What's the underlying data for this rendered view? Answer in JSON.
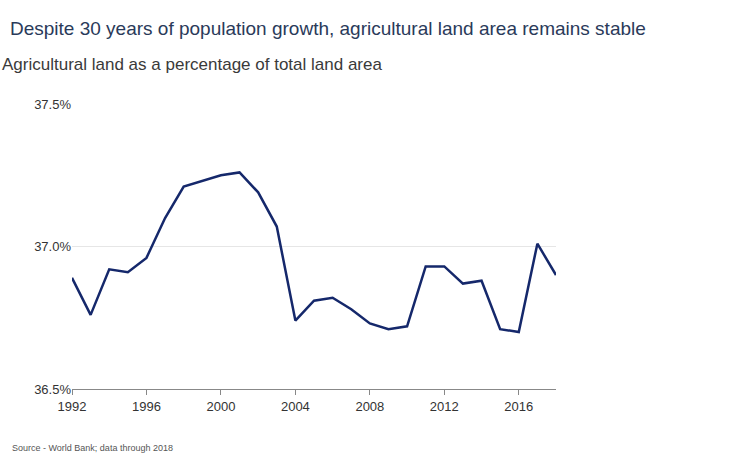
{
  "chart_data": {
    "type": "line",
    "title": "Despite 30 years of population growth, agricultural land area remains stable",
    "subtitle": "Agricultural land as a percentage of total land area",
    "source": "Source - World Bank; data through 2018",
    "x": [
      1992,
      1993,
      1994,
      1995,
      1996,
      1997,
      1998,
      1999,
      2000,
      2001,
      2002,
      2003,
      2004,
      2005,
      2006,
      2007,
      2008,
      2009,
      2010,
      2011,
      2012,
      2013,
      2014,
      2015,
      2016,
      2017,
      2018
    ],
    "values": [
      36.89,
      36.76,
      36.92,
      36.91,
      36.96,
      37.1,
      37.21,
      37.23,
      37.25,
      37.26,
      37.19,
      37.07,
      36.74,
      36.81,
      36.82,
      36.78,
      36.73,
      36.71,
      36.72,
      36.93,
      36.93,
      36.87,
      36.88,
      36.71,
      36.7,
      37.01,
      36.9
    ],
    "color": "#15286b",
    "xlim": [
      1992,
      2018
    ],
    "xticks": [
      1992,
      1996,
      2000,
      2004,
      2008,
      2012,
      2016
    ],
    "ylim": [
      36.5,
      37.5
    ],
    "yticks": [
      {
        "value": 36.5,
        "label": "36.5%"
      },
      {
        "value": 37.0,
        "label": "37.0%"
      },
      {
        "value": 37.5,
        "label": "37.5%"
      }
    ],
    "grid": true
  }
}
